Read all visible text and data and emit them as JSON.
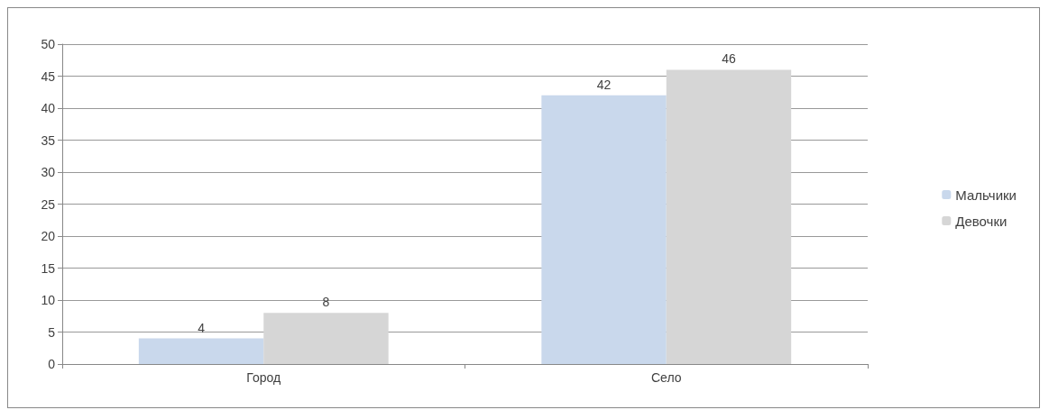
{
  "chart_data": {
    "type": "bar",
    "categories": [
      "Город",
      "Село"
    ],
    "series": [
      {
        "name": "Мальчики",
        "color": "#c9d8ec",
        "values": [
          4,
          42
        ]
      },
      {
        "name": "Девочки",
        "color": "#d6d6d6",
        "values": [
          8,
          46
        ]
      }
    ],
    "ylim": [
      0,
      50
    ],
    "yticks": [
      0,
      5,
      10,
      15,
      20,
      25,
      30,
      35,
      40,
      45,
      50
    ],
    "grid": "y",
    "legend": "right",
    "data_labels": true
  }
}
